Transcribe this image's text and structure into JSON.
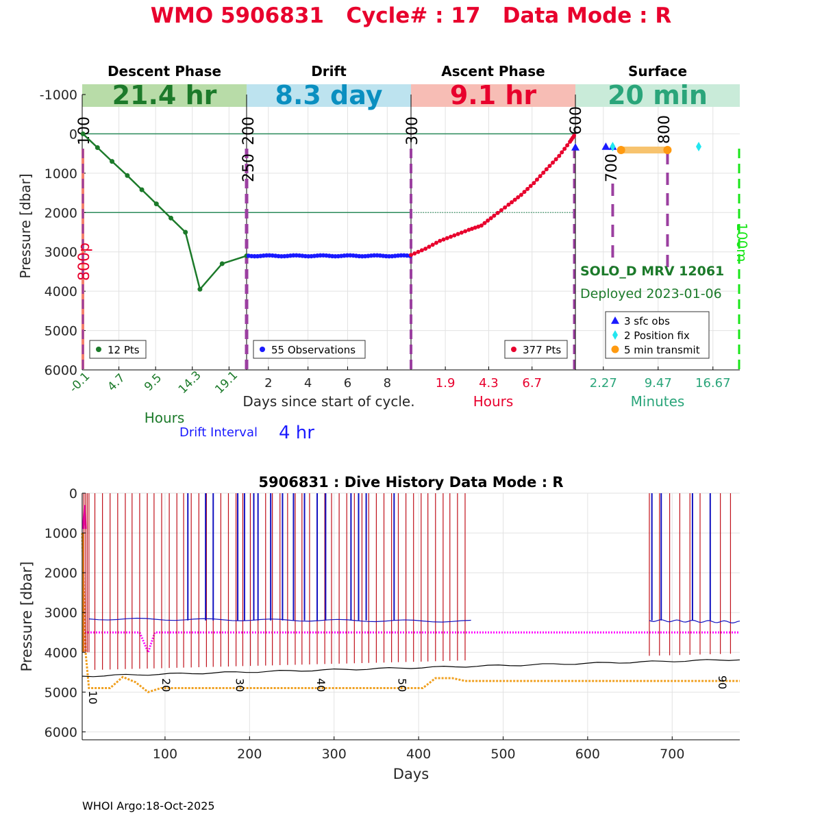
{
  "header": {
    "title": "WMO 5906831   Cycle# : 17   Data Mode : R",
    "footer": "WHOI Argo:18-Oct-2025"
  },
  "colors": {
    "title": "#e8002d",
    "descent": "#1c7a2a",
    "descent_band": "#b8dca8",
    "drift": "#0a8fc0",
    "drift_band": "#bde3ef",
    "ascent": "#e8002d",
    "ascent_band": "#f7bdb5",
    "surface": "#2aa57a",
    "surface_band": "#c9ebd9",
    "phase_line": "#9b3fa0",
    "drift_points": "#1a1aff",
    "history_profile": "#c0101a",
    "history_park": "#1010c0",
    "history_parktarget": "#ff00ff",
    "history_bottom": "#000000",
    "history_orange": "#f0a020",
    "green_dash": "#19e619",
    "ref_line": "#2a8a5a"
  },
  "chart_data": [
    {
      "type": "line",
      "ylabel": "Pressure [dbar]",
      "ylim": [
        -1000,
        6000
      ],
      "yticks": [
        -1000,
        0,
        1000,
        2000,
        3000,
        4000,
        5000,
        6000
      ],
      "yticks_labels": [
        "-1000",
        "0",
        "1000",
        "2000",
        "3000",
        "4000",
        "5000",
        "6000"
      ],
      "grid": true,
      "reference_lines": [
        0,
        2000
      ],
      "drift_interval_label": "Drift Interval",
      "drift_interval_value": "4 hr",
      "panels": [
        {
          "name": "Descent Phase",
          "duration": "21.4 hr",
          "unit_label": "Hours",
          "xlim": [
            -0.1,
            21.4
          ],
          "xticks": [
            -0.1,
            4.7,
            9.5,
            14.3,
            19.1
          ],
          "xticks_labels": [
            "-0.1",
            "4.7",
            "9.5",
            "14.3",
            "19.1"
          ],
          "legend": "12 Pts",
          "series": [
            {
              "x": 0.0,
              "y": 0
            },
            {
              "x": 1.9,
              "y": 350
            },
            {
              "x": 3.8,
              "y": 700
            },
            {
              "x": 5.8,
              "y": 1060
            },
            {
              "x": 7.7,
              "y": 1420
            },
            {
              "x": 9.6,
              "y": 1780
            },
            {
              "x": 11.5,
              "y": 2140
            },
            {
              "x": 13.4,
              "y": 2500
            },
            {
              "x": 15.3,
              "y": 3950
            },
            {
              "x": 18.2,
              "y": 3300
            },
            {
              "x": 21.4,
              "y": 3100
            }
          ]
        },
        {
          "name": "Drift",
          "duration": "8.3 day",
          "unit_label": "Days since start of cycle.",
          "xlim": [
            0.9,
            9.2
          ],
          "xticks": [
            2,
            4,
            6,
            8
          ],
          "xticks_labels": [
            "2",
            "4",
            "6",
            "8"
          ],
          "legend": "55 Observations",
          "series_y_mean": 3100,
          "series_count": 55
        },
        {
          "name": "Ascent Phase",
          "duration": "9.1 hr",
          "unit_label": "Hours",
          "xlim": [
            0,
            9.1
          ],
          "xticks": [
            1.9,
            4.3,
            6.7
          ],
          "xticks_labels": [
            "1.9",
            "4.3",
            "6.7"
          ],
          "legend": "377 Pts",
          "series": [
            {
              "x": 0.0,
              "y": 3080
            },
            {
              "x": 0.8,
              "y": 2920
            },
            {
              "x": 1.6,
              "y": 2720
            },
            {
              "x": 2.4,
              "y": 2580
            },
            {
              "x": 3.2,
              "y": 2440
            },
            {
              "x": 3.9,
              "y": 2330
            },
            {
              "x": 4.6,
              "y": 2080
            },
            {
              "x": 5.4,
              "y": 1800
            },
            {
              "x": 6.1,
              "y": 1550
            },
            {
              "x": 6.8,
              "y": 1250
            },
            {
              "x": 7.5,
              "y": 900
            },
            {
              "x": 8.2,
              "y": 560
            },
            {
              "x": 8.8,
              "y": 200
            },
            {
              "x": 9.1,
              "y": 0
            }
          ]
        },
        {
          "name": "Surface",
          "duration": "20 min",
          "unit_label": "Minutes",
          "xlim": [
            -1.4,
            20.2
          ],
          "xticks": [
            2.27,
            9.47,
            16.67
          ],
          "xticks_labels": [
            "2.27",
            "9.47",
            "16.67"
          ],
          "sfc_obs_minutes": [
            2.6,
            3.5
          ],
          "position_fix_minutes": [
            3.5,
            14.8
          ],
          "transmit_minutes": [
            4.6,
            10.7
          ],
          "legend": [
            {
              "label": "3 sfc obs",
              "marker": "triangle",
              "color": "#1a1aff"
            },
            {
              "label": "2 Position fix",
              "marker": "diamond",
              "color": "#22e6f0"
            },
            {
              "label": "5 min transmit",
              "marker": "circle",
              "color": "#ff9a10"
            }
          ],
          "float_label": "SOLO_D MRV 12061",
          "deployed_label": "Deployed 2023-01-06"
        }
      ],
      "phase_markers": [
        {
          "label": "100",
          "panel": 0,
          "x": 0.0
        },
        {
          "label": "200",
          "panel": 0,
          "x": 21.4
        },
        {
          "label": "250",
          "panel": 0,
          "x": 21.4
        },
        {
          "label": "300",
          "panel": 1,
          "x": 9.2
        },
        {
          "label": "600",
          "panel": 2,
          "x": 9.1
        },
        {
          "label": "700",
          "panel": 3,
          "x": 3.5
        },
        {
          "label": "800",
          "panel": 3,
          "x": 10.7
        }
      ],
      "side_labels": {
        "left": "800p",
        "right": "100m"
      }
    },
    {
      "type": "line",
      "title": "5906831 : Dive History      Data Mode : R",
      "xlabel": "Days",
      "ylabel": "Pressure [dbar]",
      "xlim": [
        2,
        780
      ],
      "ylim": [
        0,
        6200
      ],
      "xticks": [
        100,
        200,
        300,
        400,
        500,
        600,
        700
      ],
      "xticks_labels": [
        "100",
        "200",
        "300",
        "400",
        "500",
        "600",
        "700"
      ],
      "yticks": [
        0,
        1000,
        2000,
        3000,
        4000,
        5000,
        6000
      ],
      "yticks_labels": [
        "0",
        "1000",
        "2000",
        "3000",
        "4000",
        "5000",
        "6000"
      ],
      "grid": true,
      "profile_days": [
        2,
        4,
        6,
        8,
        10,
        17,
        26,
        35,
        44,
        53,
        61,
        70,
        79,
        87,
        96,
        105,
        114,
        122,
        131,
        140,
        149,
        157,
        166,
        175,
        184,
        192,
        201,
        210,
        219,
        227,
        236,
        245,
        254,
        262,
        271,
        280,
        289,
        297,
        306,
        315,
        324,
        333,
        341,
        350,
        359,
        368,
        376,
        385,
        394,
        403,
        411,
        420,
        429,
        437,
        446,
        455,
        673,
        685,
        697,
        709,
        721,
        733,
        745,
        757,
        769
      ],
      "park_segments": [
        {
          "start": 10,
          "end": 462,
          "y_start": 3160,
          "y_end": 3220
        },
        {
          "start": 673,
          "end": 780,
          "y_start": 3200,
          "y_end": 3240
        }
      ],
      "park_spike_days": [
        127,
        148,
        157,
        186,
        194,
        205,
        210,
        225,
        239,
        252,
        265,
        280,
        290,
        320,
        329,
        338,
        371,
        676,
        687,
        724,
        745
      ],
      "park_target": 3500,
      "park_target_dip": {
        "start": 70,
        "mid": 80,
        "end": 88,
        "depth": 4000
      },
      "bottom_line": {
        "start": 2,
        "end": 780,
        "y_start": 4600,
        "y_end": 4180
      },
      "orange_line": [
        {
          "x": 2,
          "y": 1000
        },
        {
          "x": 6,
          "y": 4000
        },
        {
          "x": 10,
          "y": 4900
        },
        {
          "x": 35,
          "y": 4900
        },
        {
          "x": 50,
          "y": 4620
        },
        {
          "x": 65,
          "y": 4750
        },
        {
          "x": 80,
          "y": 5000
        },
        {
          "x": 95,
          "y": 4900
        },
        {
          "x": 405,
          "y": 4900
        },
        {
          "x": 420,
          "y": 4650
        },
        {
          "x": 440,
          "y": 4650
        },
        {
          "x": 455,
          "y": 4720
        },
        {
          "x": 780,
          "y": 4720
        }
      ],
      "cycle_labels": [
        {
          "label": "10",
          "x": 10
        },
        {
          "label": "20",
          "x": 97
        },
        {
          "label": "30",
          "x": 184
        },
        {
          "label": "40",
          "x": 280
        },
        {
          "label": "50",
          "x": 376
        },
        {
          "label": "90",
          "x": 755
        }
      ]
    }
  ]
}
